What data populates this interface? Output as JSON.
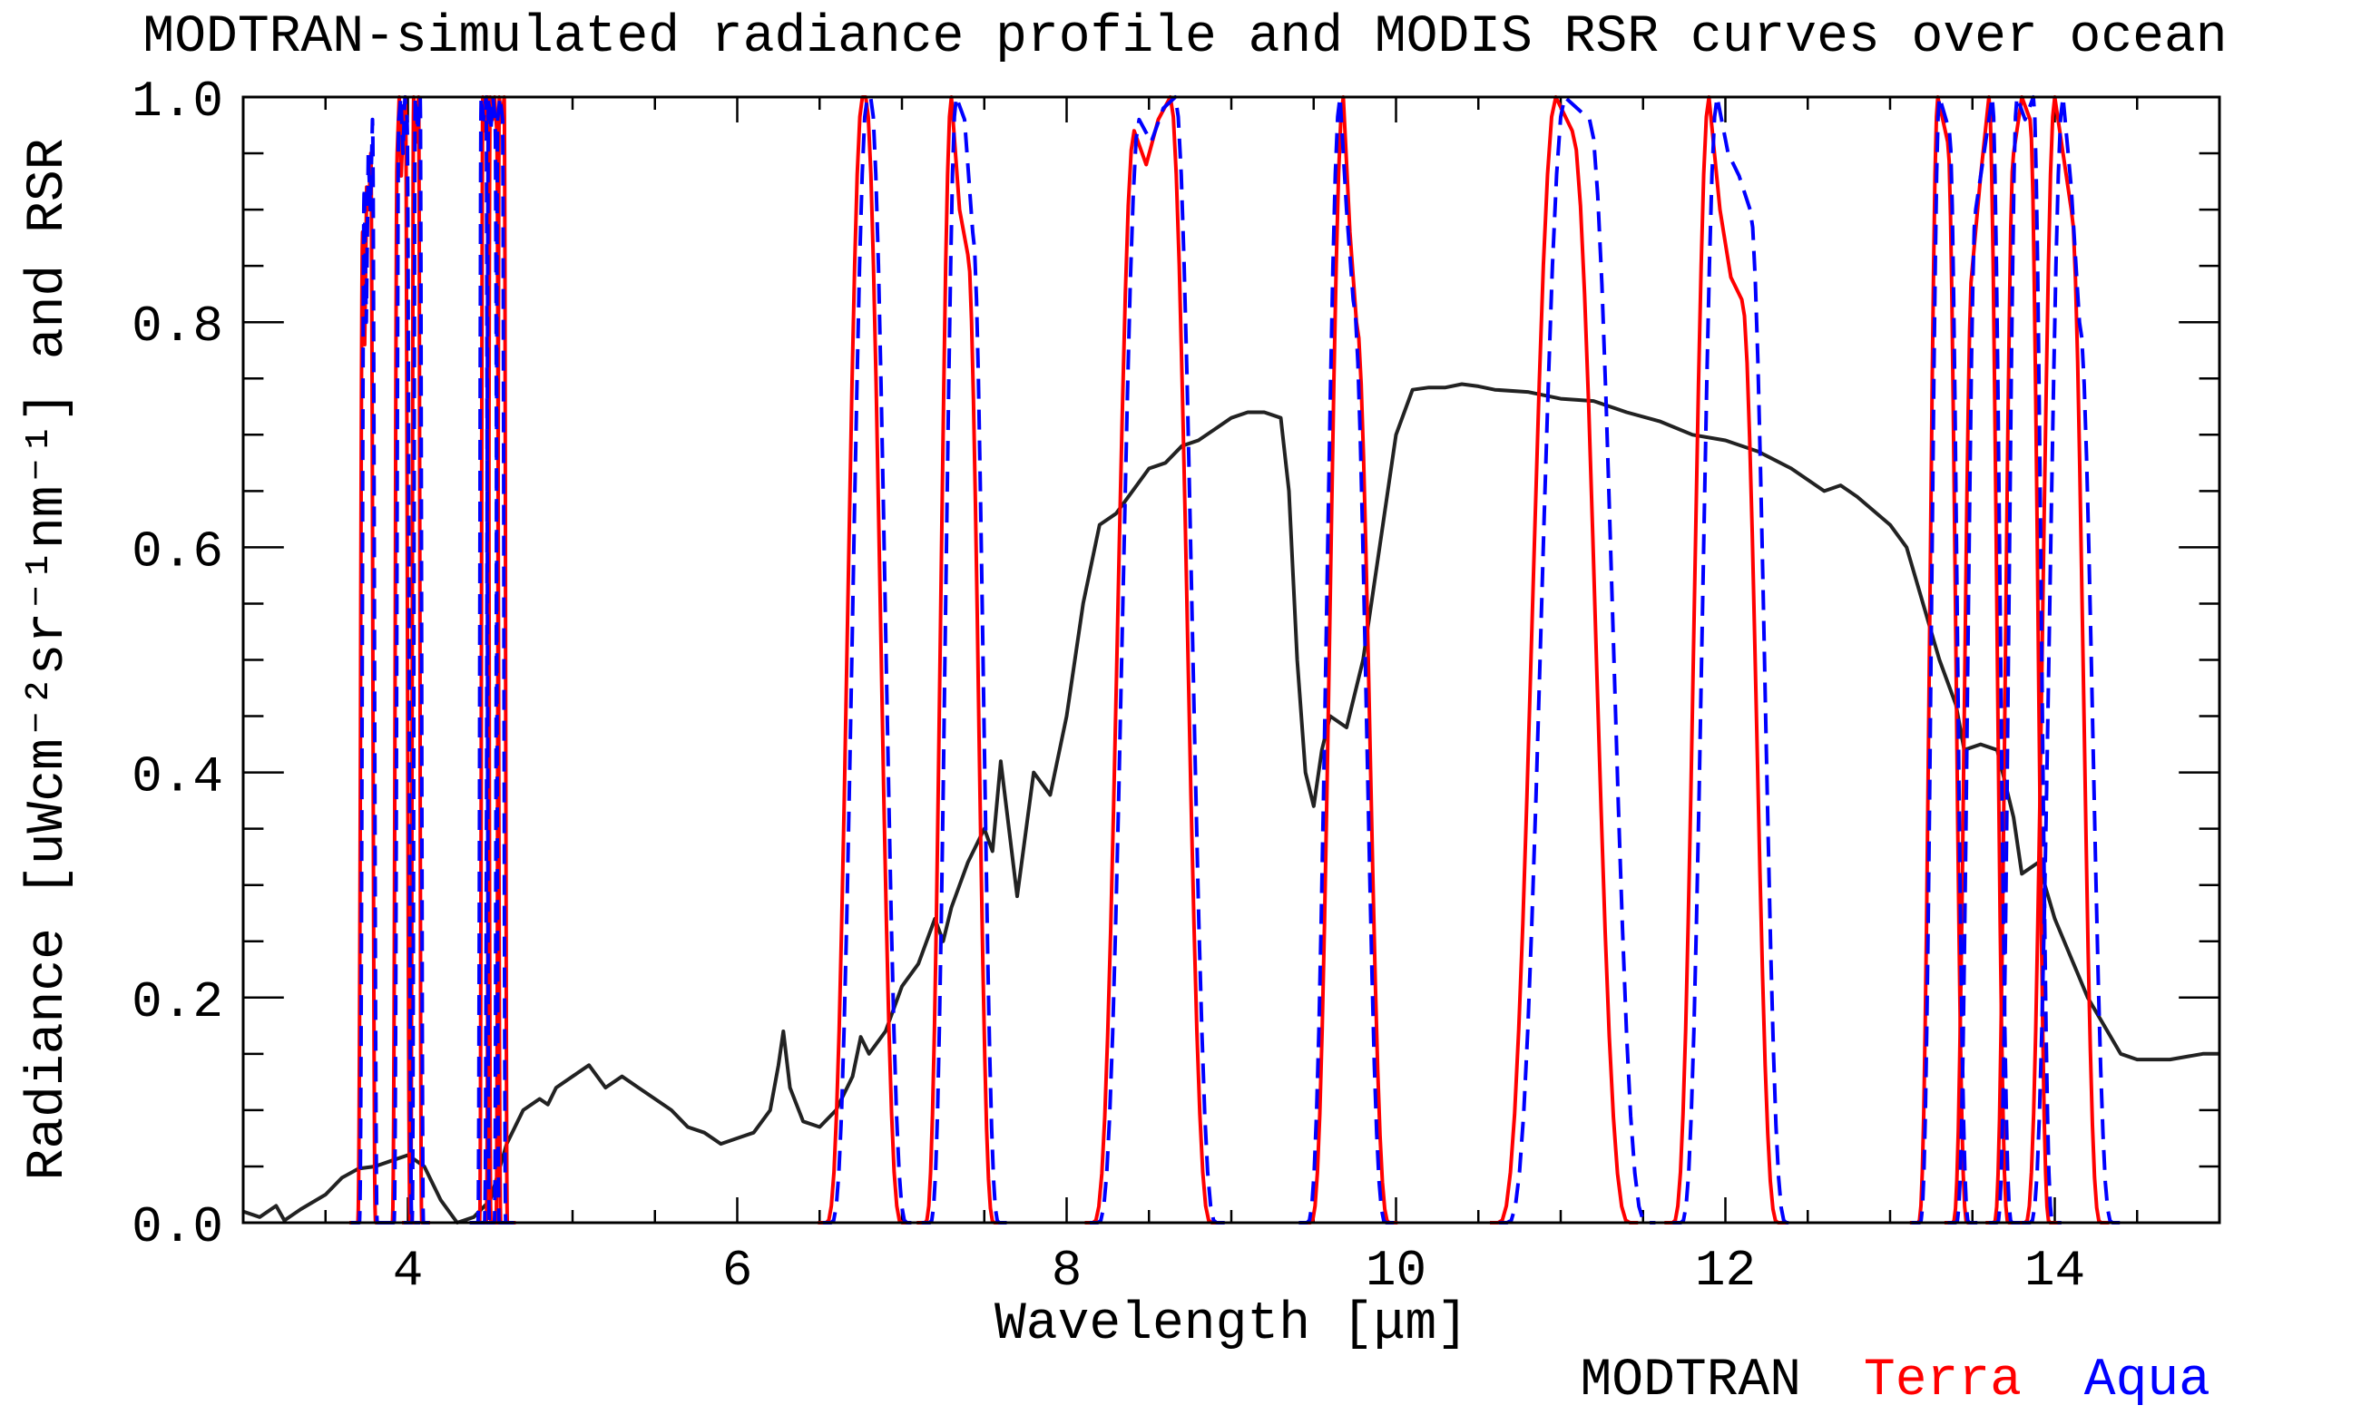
{
  "chart_data": {
    "type": "line",
    "title": "MODTRAN-simulated radiance profile and MODIS RSR curves over ocean",
    "xlabel": "Wavelength [μm]",
    "ylabel": "Radiance [uWcm⁻²sr⁻¹nm⁻¹] and RSR",
    "xlim": [
      3,
      15
    ],
    "ylim": [
      0,
      1
    ],
    "x_ticks": [
      4,
      6,
      8,
      10,
      12,
      14
    ],
    "x_tick_labels": [
      "4",
      "6",
      "8",
      "10",
      "12",
      "14"
    ],
    "y_ticks": [
      0.0,
      0.2,
      0.4,
      0.6,
      0.8,
      1.0
    ],
    "y_tick_labels": [
      "0.0",
      "0.2",
      "0.4",
      "0.6",
      "0.8",
      "1.0"
    ],
    "legend": {
      "placement": "bottom-right",
      "entries": [
        {
          "label": "MODTRAN",
          "color": "#000000"
        },
        {
          "label": "Terra",
          "color": "#ff0000"
        },
        {
          "label": "Aqua",
          "color": "#0000ff"
        }
      ]
    },
    "series": [
      {
        "name": "MODTRAN",
        "color": "#222222",
        "style": "solid",
        "points": [
          [
            3.0,
            0.01
          ],
          [
            3.1,
            0.005
          ],
          [
            3.2,
            0.015
          ],
          [
            3.25,
            0.002
          ],
          [
            3.35,
            0.012
          ],
          [
            3.5,
            0.025
          ],
          [
            3.6,
            0.04
          ],
          [
            3.7,
            0.048
          ],
          [
            3.8,
            0.05
          ],
          [
            3.9,
            0.055
          ],
          [
            4.0,
            0.06
          ],
          [
            4.05,
            0.055
          ],
          [
            4.1,
            0.05
          ],
          [
            4.2,
            0.02
          ],
          [
            4.3,
            0.0
          ],
          [
            4.4,
            0.005
          ],
          [
            4.5,
            0.02
          ],
          [
            4.6,
            0.07
          ],
          [
            4.7,
            0.1
          ],
          [
            4.8,
            0.11
          ],
          [
            4.85,
            0.105
          ],
          [
            4.9,
            0.12
          ],
          [
            5.0,
            0.13
          ],
          [
            5.1,
            0.14
          ],
          [
            5.15,
            0.13
          ],
          [
            5.2,
            0.12
          ],
          [
            5.3,
            0.13
          ],
          [
            5.4,
            0.12
          ],
          [
            5.5,
            0.11
          ],
          [
            5.6,
            0.1
          ],
          [
            5.7,
            0.085
          ],
          [
            5.8,
            0.08
          ],
          [
            5.9,
            0.07
          ],
          [
            6.0,
            0.075
          ],
          [
            6.1,
            0.08
          ],
          [
            6.15,
            0.09
          ],
          [
            6.2,
            0.1
          ],
          [
            6.25,
            0.14
          ],
          [
            6.28,
            0.17
          ],
          [
            6.32,
            0.12
          ],
          [
            6.4,
            0.09
          ],
          [
            6.5,
            0.085
          ],
          [
            6.6,
            0.1
          ],
          [
            6.7,
            0.13
          ],
          [
            6.75,
            0.165
          ],
          [
            6.8,
            0.15
          ],
          [
            6.9,
            0.17
          ],
          [
            7.0,
            0.21
          ],
          [
            7.1,
            0.23
          ],
          [
            7.2,
            0.27
          ],
          [
            7.25,
            0.25
          ],
          [
            7.3,
            0.28
          ],
          [
            7.4,
            0.32
          ],
          [
            7.5,
            0.35
          ],
          [
            7.55,
            0.33
          ],
          [
            7.6,
            0.41
          ],
          [
            7.7,
            0.29
          ],
          [
            7.8,
            0.4
          ],
          [
            7.9,
            0.38
          ],
          [
            8.0,
            0.45
          ],
          [
            8.1,
            0.55
          ],
          [
            8.2,
            0.62
          ],
          [
            8.3,
            0.63
          ],
          [
            8.4,
            0.65
          ],
          [
            8.5,
            0.67
          ],
          [
            8.6,
            0.675
          ],
          [
            8.7,
            0.69
          ],
          [
            8.8,
            0.695
          ],
          [
            8.9,
            0.705
          ],
          [
            9.0,
            0.715
          ],
          [
            9.1,
            0.72
          ],
          [
            9.2,
            0.72
          ],
          [
            9.3,
            0.715
          ],
          [
            9.35,
            0.65
          ],
          [
            9.4,
            0.5
          ],
          [
            9.45,
            0.4
          ],
          [
            9.5,
            0.37
          ],
          [
            9.55,
            0.42
          ],
          [
            9.6,
            0.45
          ],
          [
            9.7,
            0.44
          ],
          [
            9.8,
            0.5
          ],
          [
            9.9,
            0.6
          ],
          [
            10.0,
            0.7
          ],
          [
            10.1,
            0.74
          ],
          [
            10.2,
            0.742
          ],
          [
            10.3,
            0.742
          ],
          [
            10.4,
            0.745
          ],
          [
            10.5,
            0.743
          ],
          [
            10.6,
            0.74
          ],
          [
            10.8,
            0.738
          ],
          [
            11.0,
            0.732
          ],
          [
            11.2,
            0.73
          ],
          [
            11.4,
            0.72
          ],
          [
            11.6,
            0.712
          ],
          [
            11.8,
            0.7
          ],
          [
            12.0,
            0.695
          ],
          [
            12.2,
            0.685
          ],
          [
            12.4,
            0.67
          ],
          [
            12.6,
            0.65
          ],
          [
            12.7,
            0.655
          ],
          [
            12.8,
            0.645
          ],
          [
            13.0,
            0.62
          ],
          [
            13.1,
            0.6
          ],
          [
            13.2,
            0.55
          ],
          [
            13.3,
            0.5
          ],
          [
            13.4,
            0.46
          ],
          [
            13.45,
            0.42
          ],
          [
            13.55,
            0.425
          ],
          [
            13.65,
            0.42
          ],
          [
            13.75,
            0.36
          ],
          [
            13.8,
            0.31
          ],
          [
            13.9,
            0.32
          ],
          [
            14.0,
            0.27
          ],
          [
            14.2,
            0.2
          ],
          [
            14.3,
            0.175
          ],
          [
            14.4,
            0.15
          ],
          [
            14.5,
            0.145
          ],
          [
            14.7,
            0.145
          ],
          [
            14.9,
            0.15
          ],
          [
            15.0,
            0.15
          ]
        ]
      },
      {
        "name": "Terra",
        "color": "#ff0000",
        "style": "solid",
        "bands": [
          {
            "center": 3.75,
            "width": 0.05,
            "edge": 0.03,
            "top": [
              0.88,
              0.78,
              0.92,
              0.9,
              0.95
            ]
          },
          {
            "center": 3.96,
            "width": 0.05,
            "edge": 0.03,
            "top": [
              0.95,
              1.0,
              0.93,
              0.98,
              1.0
            ]
          },
          {
            "center": 4.05,
            "width": 0.03,
            "edge": 0.02,
            "top": [
              1.0,
              0.96,
              1.0
            ]
          },
          {
            "center": 4.47,
            "width": 0.03,
            "edge": 0.02,
            "top": [
              1.0,
              0.97,
              1.0
            ]
          },
          {
            "center": 4.52,
            "width": 0.04,
            "edge": 0.025,
            "top": [
              1.0,
              0.98,
              1.0,
              0.97
            ]
          },
          {
            "center": 4.57,
            "width": 0.03,
            "edge": 0.02,
            "top": [
              1.0,
              0.98,
              1.0
            ]
          },
          {
            "center": 6.77,
            "width": 0.02,
            "edge": 0.22,
            "top": [
              1.0
            ]
          },
          {
            "center": 7.35,
            "width": 0.1,
            "edge": 0.16,
            "top": [
              1.0,
              0.9,
              0.86
            ]
          },
          {
            "center": 8.52,
            "width": 0.22,
            "edge": 0.25,
            "top": [
              0.97,
              0.94,
              0.98,
              1.0
            ]
          },
          {
            "center": 9.72,
            "width": 0.08,
            "edge": 0.2,
            "top": [
              1.0,
              0.88,
              0.8
            ]
          },
          {
            "center": 11.02,
            "width": 0.1,
            "edge": 0.35,
            "top": [
              1.0,
              0.97
            ]
          },
          {
            "center": 12.0,
            "width": 0.2,
            "edge": 0.22,
            "top": [
              1.0,
              0.9,
              0.84,
              0.82
            ]
          },
          {
            "center": 13.32,
            "width": 0.06,
            "edge": 0.12,
            "top": [
              1.0,
              0.96
            ]
          },
          {
            "center": 13.55,
            "width": 0.1,
            "edge": 0.12,
            "top": [
              0.85,
              0.93,
              1.0
            ]
          },
          {
            "center": 13.8,
            "width": 0.1,
            "edge": 0.12,
            "top": [
              0.95,
              1.0,
              0.98
            ]
          },
          {
            "center": 14.05,
            "width": 0.1,
            "edge": 0.18,
            "top": [
              1.0,
              0.95,
              0.9
            ]
          }
        ]
      },
      {
        "name": "Aqua",
        "color": "#0000ff",
        "style": "dashed",
        "bands": [
          {
            "center": 3.76,
            "width": 0.05,
            "edge": 0.03,
            "top": [
              0.92,
              0.8,
              0.95,
              0.9,
              0.98
            ]
          },
          {
            "center": 3.97,
            "width": 0.05,
            "edge": 0.03,
            "top": [
              0.98,
              1.0,
              0.95,
              1.0,
              0.98
            ]
          },
          {
            "center": 4.06,
            "width": 0.03,
            "edge": 0.02,
            "top": [
              1.0,
              0.97,
              1.0
            ]
          },
          {
            "center": 4.46,
            "width": 0.03,
            "edge": 0.02,
            "top": [
              1.0,
              0.98,
              1.0
            ]
          },
          {
            "center": 4.51,
            "width": 0.04,
            "edge": 0.025,
            "top": [
              1.0,
              0.97,
              1.0,
              0.98
            ]
          },
          {
            "center": 4.56,
            "width": 0.03,
            "edge": 0.02,
            "top": [
              0.98,
              1.0,
              0.98
            ]
          },
          {
            "center": 6.8,
            "width": 0.02,
            "edge": 0.22,
            "top": [
              1.0
            ]
          },
          {
            "center": 7.38,
            "width": 0.1,
            "edge": 0.16,
            "top": [
              1.0,
              0.98,
              0.88
            ]
          },
          {
            "center": 8.55,
            "width": 0.22,
            "edge": 0.25,
            "top": [
              0.98,
              0.96,
              0.99,
              1.0
            ]
          },
          {
            "center": 9.7,
            "width": 0.08,
            "edge": 0.2,
            "top": [
              1.0,
              0.9,
              0.82
            ]
          },
          {
            "center": 11.1,
            "width": 0.15,
            "edge": 0.35,
            "top": [
              1.0,
              0.99,
              0.98
            ]
          },
          {
            "center": 12.05,
            "width": 0.2,
            "edge": 0.22,
            "top": [
              1.0,
              0.95,
              0.93,
              0.9
            ]
          },
          {
            "center": 13.33,
            "width": 0.06,
            "edge": 0.12,
            "top": [
              1.0,
              0.97
            ]
          },
          {
            "center": 13.57,
            "width": 0.1,
            "edge": 0.12,
            "top": [
              0.9,
              0.95,
              1.0
            ]
          },
          {
            "center": 13.82,
            "width": 0.1,
            "edge": 0.12,
            "top": [
              1.0,
              0.98,
              1.0
            ]
          },
          {
            "center": 14.1,
            "width": 0.1,
            "edge": 0.2,
            "top": [
              1.0,
              0.92,
              0.8
            ]
          }
        ]
      }
    ]
  }
}
